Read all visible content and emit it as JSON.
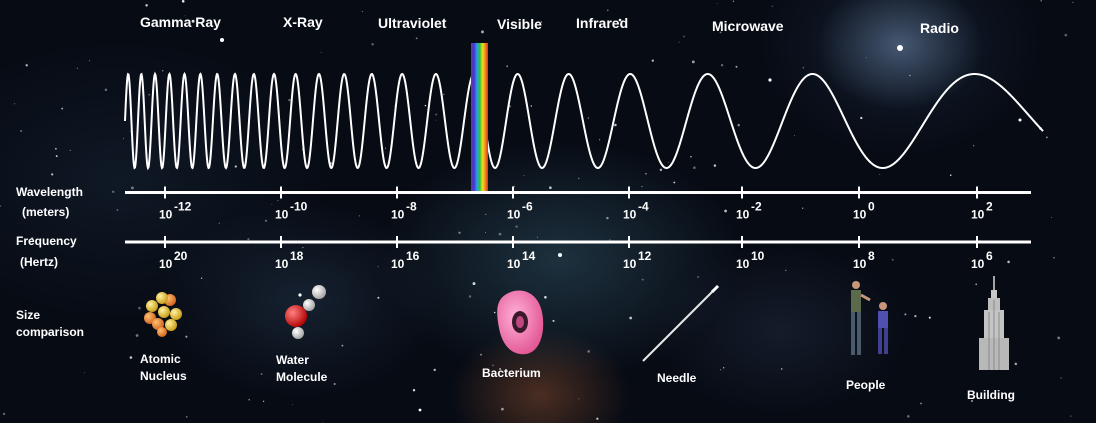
{
  "bands": [
    "Gamma Ray",
    "X-Ray",
    "Ultraviolet",
    "Visible",
    "Infrared",
    "Microwave",
    "Radio"
  ],
  "wavelength": {
    "label_line1": "Wavelength",
    "label_line2": "(meters)",
    "base": "10",
    "exponents": [
      "-12",
      "-10",
      "-8",
      "-6",
      "-4",
      "-2",
      "0",
      "2"
    ]
  },
  "frequency": {
    "label_line1": "Frequency",
    "label_line2": "(Hertz)",
    "base": "10",
    "exponents": [
      "20",
      "18",
      "16",
      "14",
      "12",
      "10",
      "8",
      "6"
    ]
  },
  "size": {
    "label_line1": "Size",
    "label_line2": "comparison",
    "items": [
      {
        "lines": [
          "Atomic",
          "Nucleus"
        ],
        "icon": "atomic-nucleus-icon"
      },
      {
        "lines": [
          "Water",
          "Molecule"
        ],
        "icon": "water-molecule-icon"
      },
      {
        "lines": [
          "Bacterium"
        ],
        "icon": "bacterium-icon"
      },
      {
        "lines": [
          "Needle"
        ],
        "icon": "needle-icon"
      },
      {
        "lines": [
          "People"
        ],
        "icon": "people-icon"
      },
      {
        "lines": [
          "Building"
        ],
        "icon": "building-icon"
      }
    ]
  },
  "colors": {
    "wave": "#ffffff",
    "axis": "#ffffff",
    "spectrum": [
      "#7a2fa0",
      "#3b3bd8",
      "#2fa0e0",
      "#2ec43a",
      "#f0e020",
      "#f08a20",
      "#e02a2a"
    ]
  }
}
